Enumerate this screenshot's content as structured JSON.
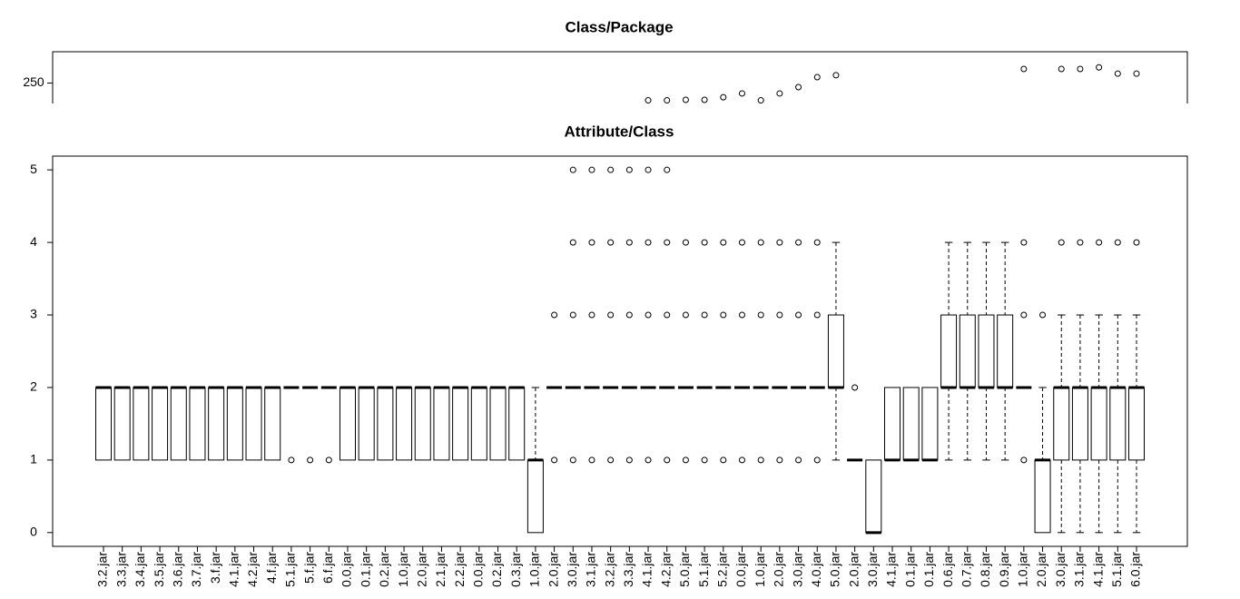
{
  "chart_data": [
    {
      "type": "box",
      "title": "Class/Package",
      "ylim": [
        237,
        270
      ],
      "yticks": [
        250
      ],
      "outliers": [
        [],
        [],
        [],
        [],
        [],
        [],
        [],
        [],
        [],
        [],
        [],
        [],
        [],
        [],
        [],
        [],
        [],
        [],
        [],
        [],
        [],
        [],
        [],
        [],
        [],
        [],
        [],
        [],
        [],
        [
          239
        ],
        [
          239
        ],
        [
          239.3
        ],
        [
          239.3
        ],
        [
          241
        ],
        [
          243.4
        ],
        [
          239
        ],
        [
          243.4
        ],
        [
          247.4
        ],
        [
          253.8
        ],
        [
          255
        ],
        [],
        [],
        [],
        [],
        [],
        [],
        [],
        [],
        [],
        [
          259
        ],
        [],
        [
          259
        ],
        [
          259
        ],
        [
          260
        ],
        [
          256
        ],
        [
          256
        ]
      ]
    },
    {
      "type": "box",
      "title": "Attribute/Class",
      "ylim": [
        -0.19,
        5.19
      ],
      "yticks": [
        0,
        1,
        2,
        3,
        4,
        5
      ],
      "categories": [
        "3.2.jar",
        "3.3.jar",
        "3.4.jar",
        "3.5.jar",
        "3.6.jar",
        "3.7.jar",
        "3.f.jar",
        "4.1.jar",
        "4.2.jar",
        "4.f.jar",
        "5.1.jar",
        "5.f.jar",
        "6.f.jar",
        "0.0.jar",
        "0.1.jar",
        "0.2.jar",
        "1.0.jar",
        "2.0.jar",
        "2.1.jar",
        "2.2.jar",
        "0.0.jar",
        "0.2.jar",
        "0.3.jar",
        "1.0.jar",
        "2.0.jar",
        "3.0.jar",
        "3.1.jar",
        "3.2.jar",
        "3.3.jar",
        "4.1.jar",
        "4.2.jar",
        "5.0.jar",
        "5.1.jar",
        "5.2.jar",
        "0.0.jar",
        "1.0.jar",
        "2.0.jar",
        "3.0.jar",
        "4.0.jar",
        "5.0.jar",
        "2.0.jar",
        "3.0.jar",
        "4.1.jar",
        "0.1.jar",
        "0.1.jar",
        "0.6.jar",
        "0.7.jar",
        "0.8.jar",
        "0.9.jar",
        "1.0.jar",
        "2.0.jar",
        "3.0.jar",
        "3.1.jar",
        "4.1.jar",
        "5.1.jar",
        "6.0.jar"
      ],
      "lower": [
        1,
        1,
        1,
        1,
        1,
        1,
        1,
        1,
        1,
        1,
        2,
        2,
        2,
        1,
        1,
        1,
        1,
        1,
        1,
        1,
        1,
        1,
        1,
        0,
        2,
        2,
        2,
        2,
        2,
        2,
        2,
        2,
        2,
        2,
        2,
        2,
        2,
        2,
        2,
        1,
        1,
        0,
        1,
        1,
        1,
        1,
        1,
        1,
        1,
        2,
        0,
        0,
        0,
        0,
        0,
        0
      ],
      "q1": [
        1,
        1,
        1,
        1,
        1,
        1,
        1,
        1,
        1,
        1,
        2,
        2,
        2,
        1,
        1,
        1,
        1,
        1,
        1,
        1,
        1,
        1,
        1,
        0,
        2,
        2,
        2,
        2,
        2,
        2,
        2,
        2,
        2,
        2,
        2,
        2,
        2,
        2,
        2,
        2,
        1,
        0,
        1,
        1,
        1,
        2,
        2,
        2,
        2,
        2,
        0,
        1,
        1,
        1,
        1,
        1
      ],
      "median": [
        2,
        2,
        2,
        2,
        2,
        2,
        2,
        2,
        2,
        2,
        2,
        2,
        2,
        2,
        2,
        2,
        2,
        2,
        2,
        2,
        2,
        2,
        2,
        1,
        2,
        2,
        2,
        2,
        2,
        2,
        2,
        2,
        2,
        2,
        2,
        2,
        2,
        2,
        2,
        2,
        1,
        0,
        1,
        1,
        1,
        2,
        2,
        2,
        2,
        2,
        1,
        2,
        2,
        2,
        2,
        2
      ],
      "q3": [
        2,
        2,
        2,
        2,
        2,
        2,
        2,
        2,
        2,
        2,
        2,
        2,
        2,
        2,
        2,
        2,
        2,
        2,
        2,
        2,
        2,
        2,
        2,
        1,
        2,
        2,
        2,
        2,
        2,
        2,
        2,
        2,
        2,
        2,
        2,
        2,
        2,
        2,
        2,
        3,
        1,
        1,
        2,
        2,
        2,
        3,
        3,
        3,
        3,
        2,
        1,
        2,
        2,
        2,
        2,
        2
      ],
      "upper": [
        2,
        2,
        2,
        2,
        2,
        2,
        2,
        2,
        2,
        2,
        2,
        2,
        2,
        2,
        2,
        2,
        2,
        2,
        2,
        2,
        2,
        2,
        2,
        2,
        2,
        2,
        2,
        2,
        2,
        2,
        2,
        2,
        2,
        2,
        2,
        2,
        2,
        2,
        2,
        4,
        1,
        1,
        2,
        2,
        2,
        4,
        4,
        4,
        4,
        2,
        2,
        3,
        3,
        3,
        3,
        3
      ],
      "outliers": [
        [],
        [],
        [],
        [],
        [],
        [],
        [],
        [],
        [],
        [],
        [
          1
        ],
        [
          1
        ],
        [
          1
        ],
        [],
        [],
        [],
        [],
        [],
        [],
        [],
        [],
        [],
        [],
        [],
        [
          3,
          1
        ],
        [
          5,
          4,
          3,
          1
        ],
        [
          5,
          4,
          3,
          1
        ],
        [
          5,
          4,
          3,
          1
        ],
        [
          5,
          4,
          3,
          1
        ],
        [
          5,
          4,
          3,
          1
        ],
        [
          5,
          4,
          3,
          1
        ],
        [
          4,
          3,
          1
        ],
        [
          4,
          3,
          1
        ],
        [
          4,
          3,
          1
        ],
        [
          4,
          3,
          1
        ],
        [
          4,
          3,
          1
        ],
        [
          4,
          3,
          1
        ],
        [
          4,
          3,
          1
        ],
        [
          4,
          3,
          1
        ],
        [],
        [
          2
        ],
        [],
        [],
        [],
        [],
        [],
        [],
        [],
        [],
        [
          4,
          3,
          1
        ],
        [
          3
        ],
        [
          4
        ],
        [
          4
        ],
        [
          4
        ],
        [
          4
        ],
        [
          4
        ]
      ]
    }
  ]
}
